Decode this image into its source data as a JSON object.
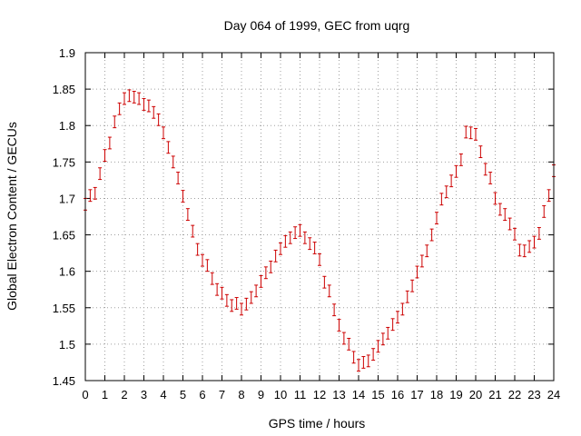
{
  "chart_data": {
    "type": "scatter",
    "title": "Day 064 of 1999, GEC from uqrg",
    "xlabel": "GPS time / hours",
    "ylabel": "Global Electron Content / GECUs",
    "xlim": [
      0,
      24
    ],
    "ylim": [
      1.45,
      1.9
    ],
    "grid": true,
    "legend": "none",
    "x_ticks": [
      "0",
      "1",
      "2",
      "3",
      "4",
      "5",
      "6",
      "7",
      "8",
      "9",
      "10",
      "11",
      "12",
      "13",
      "14",
      "15",
      "16",
      "17",
      "18",
      "19",
      "20",
      "21",
      "22",
      "23",
      "24"
    ],
    "y_ticks": [
      "1.45",
      "1.5",
      "1.55",
      "1.6",
      "1.65",
      "1.7",
      "1.75",
      "1.8",
      "1.85",
      "1.9"
    ],
    "error": 0.008,
    "series": [
      {
        "name": "GEC",
        "color": "#cc0000",
        "x": [
          0,
          0.25,
          0.5,
          0.75,
          1,
          1.25,
          1.5,
          1.75,
          2,
          2.25,
          2.5,
          2.75,
          3,
          3.25,
          3.5,
          3.75,
          4,
          4.25,
          4.5,
          4.75,
          5,
          5.25,
          5.5,
          5.75,
          6,
          6.25,
          6.5,
          6.75,
          7,
          7.25,
          7.5,
          7.75,
          8,
          8.25,
          8.5,
          8.75,
          9,
          9.25,
          9.5,
          9.75,
          10,
          10.25,
          10.5,
          10.75,
          11,
          11.25,
          11.5,
          11.75,
          12,
          12.25,
          12.5,
          12.75,
          13,
          13.25,
          13.5,
          13.75,
          14,
          14.25,
          14.5,
          14.75,
          15,
          15.25,
          15.5,
          15.75,
          16,
          16.25,
          16.5,
          16.75,
          17,
          17.25,
          17.5,
          17.75,
          18,
          18.25,
          18.5,
          18.75,
          19,
          19.25,
          19.5,
          19.75,
          20,
          20.25,
          20.5,
          20.75,
          21,
          21.25,
          21.5,
          21.75,
          22,
          22.25,
          22.5,
          22.75,
          23,
          23.25,
          23.5,
          23.75,
          24
        ],
        "y": [
          1.692,
          1.704,
          1.707,
          1.734,
          1.759,
          1.776,
          1.805,
          1.823,
          1.837,
          1.841,
          1.839,
          1.837,
          1.829,
          1.827,
          1.818,
          1.808,
          1.79,
          1.77,
          1.75,
          1.728,
          1.703,
          1.678,
          1.655,
          1.63,
          1.615,
          1.608,
          1.59,
          1.575,
          1.57,
          1.56,
          1.553,
          1.556,
          1.548,
          1.555,
          1.564,
          1.573,
          1.586,
          1.598,
          1.606,
          1.621,
          1.631,
          1.641,
          1.646,
          1.653,
          1.656,
          1.646,
          1.638,
          1.632,
          1.616,
          1.585,
          1.573,
          1.547,
          1.526,
          1.508,
          1.5,
          1.482,
          1.471,
          1.475,
          1.477,
          1.486,
          1.497,
          1.507,
          1.515,
          1.527,
          1.537,
          1.548,
          1.565,
          1.58,
          1.599,
          1.614,
          1.628,
          1.65,
          1.673,
          1.699,
          1.709,
          1.724,
          1.737,
          1.753,
          1.791,
          1.79,
          1.788,
          1.764,
          1.74,
          1.728,
          1.7,
          1.685,
          1.678,
          1.665,
          1.651,
          1.629,
          1.628,
          1.634,
          1.64,
          1.652,
          1.682,
          1.704,
          1.738
        ]
      }
    ]
  }
}
